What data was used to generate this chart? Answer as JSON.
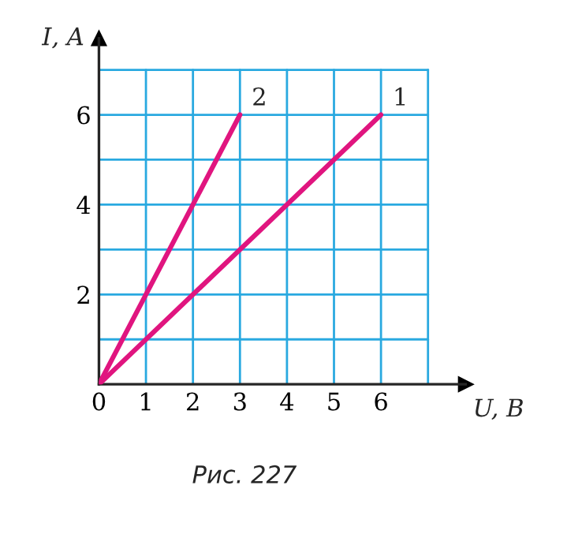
{
  "chart_data": {
    "type": "line",
    "xlabel": "U, B",
    "ylabel": "I, A",
    "series": [
      {
        "name": "1",
        "color": "#e0157f",
        "x": [
          0,
          6
        ],
        "values": [
          0,
          6
        ]
      },
      {
        "name": "2",
        "color": "#e0157f",
        "x": [
          0,
          3
        ],
        "values": [
          0,
          6
        ]
      }
    ],
    "xlim": [
      0,
      7.8
    ],
    "ylim": [
      0,
      7.7
    ],
    "xticks": [
      0,
      1,
      2,
      3,
      4,
      5,
      6,
      {
        "value": 7,
        "label": null
      }
    ],
    "yticks": [
      {
        "value": 1,
        "label": null
      },
      2,
      {
        "value": 3,
        "label": null
      },
      4,
      {
        "value": 5,
        "label": null
      },
      6,
      {
        "value": 7,
        "label": null
      }
    ],
    "grid": true,
    "annotations": [
      "Рис. 227"
    ]
  }
}
